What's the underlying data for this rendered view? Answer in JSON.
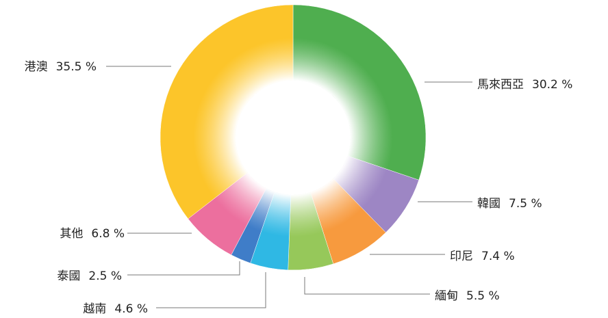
{
  "chart_data": {
    "type": "donut",
    "categories": [
      "馬來西亞",
      "韓國",
      "印尼",
      "緬甸",
      "越南",
      "泰國",
      "其他",
      "港澳"
    ],
    "values": [
      30.2,
      7.5,
      7.4,
      5.5,
      4.6,
      2.5,
      6.8,
      35.5
    ],
    "value_labels": [
      "30.2 %",
      "7.5 %",
      "7.4 %",
      "5.5 %",
      "4.6 %",
      "2.5 %",
      "6.8 %",
      "35.5 %"
    ],
    "colors": [
      "#4fae4f",
      "#9d86c4",
      "#f79a3e",
      "#96c85a",
      "#2fb8e4",
      "#3f7dc8",
      "#ec6f9e",
      "#fcc52a"
    ]
  }
}
